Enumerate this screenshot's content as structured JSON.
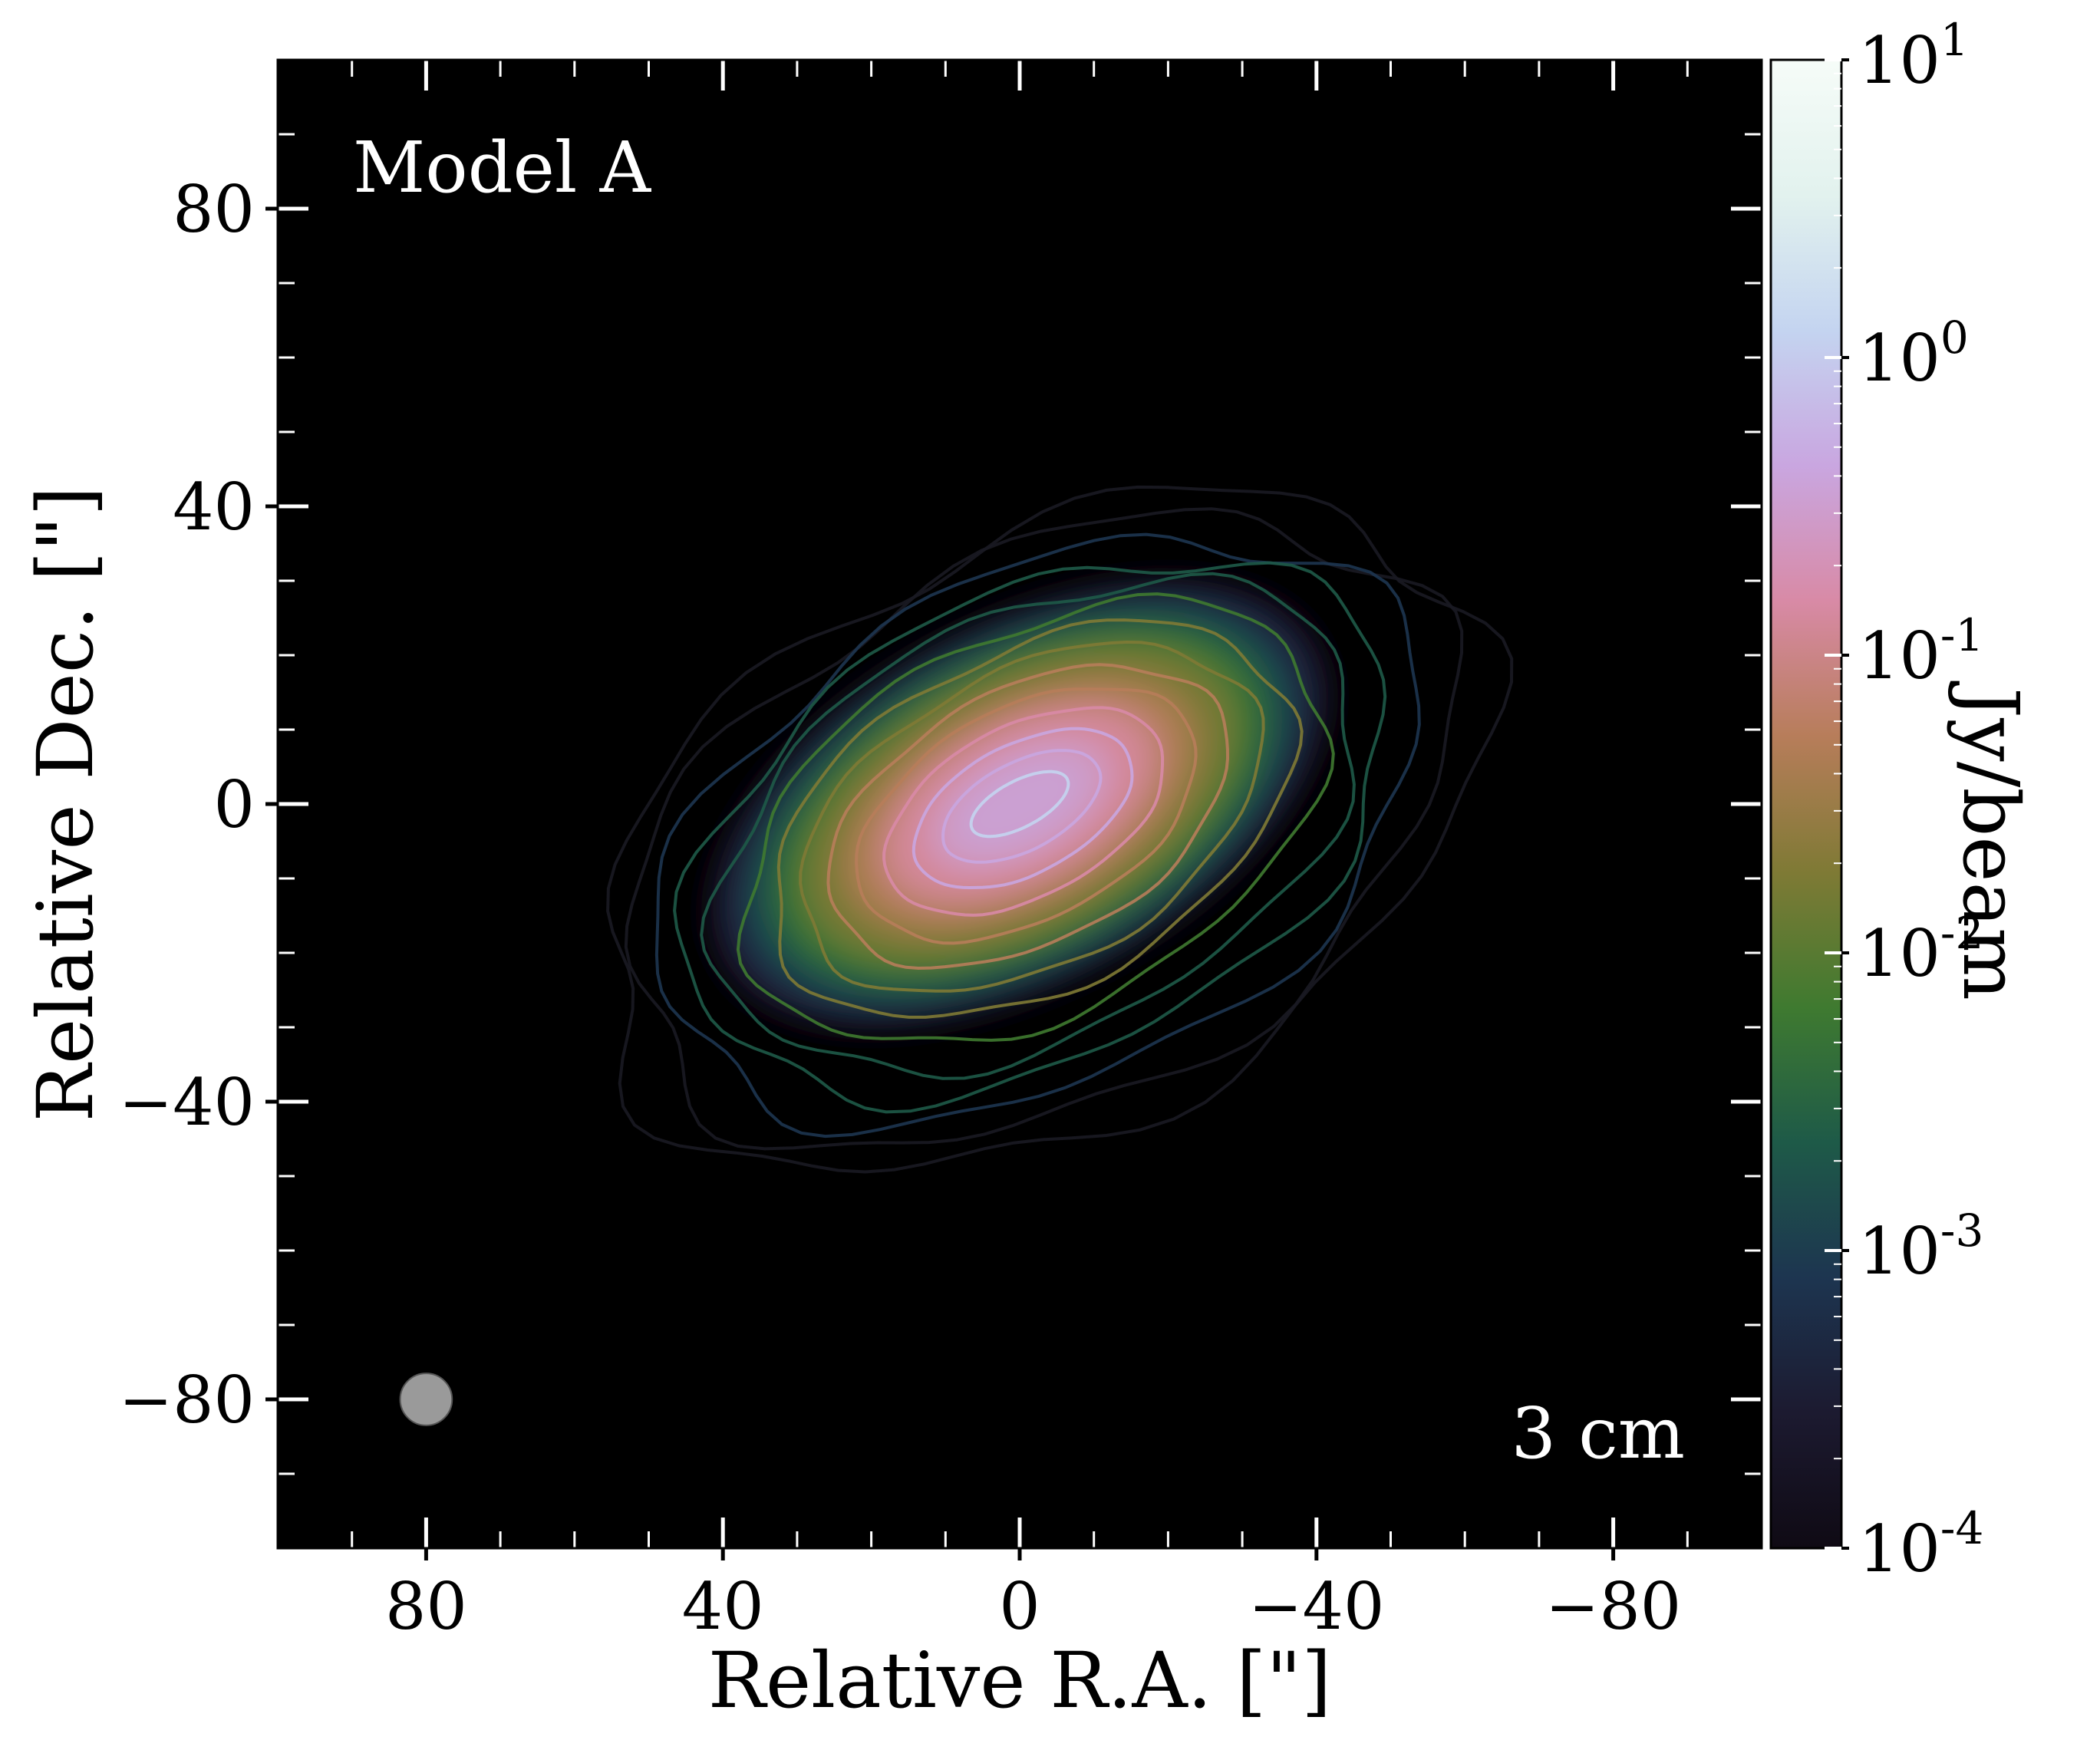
{
  "chart_data": {
    "type": "heatmap",
    "title": "",
    "panel_label": "Model A",
    "band_label": "3 cm",
    "xlabel": "Relative R.A. [\"]",
    "ylabel": "Relative Dec. [\"]",
    "xlim": [
      100,
      -100
    ],
    "ylim": [
      -100,
      100
    ],
    "x_ticks": [
      {
        "value": 80,
        "label": "80"
      },
      {
        "value": 40,
        "label": "40"
      },
      {
        "value": 0,
        "label": "0"
      },
      {
        "value": -40,
        "label": "−40"
      },
      {
        "value": -80,
        "label": "−80"
      }
    ],
    "y_ticks": [
      {
        "value": 80,
        "label": "80"
      },
      {
        "value": 40,
        "label": "40"
      },
      {
        "value": 0,
        "label": "0"
      },
      {
        "value": -40,
        "label": "−40"
      },
      {
        "value": -80,
        "label": "−80"
      }
    ],
    "colorbar": {
      "label": "Jy/beam",
      "scale": "log",
      "range": [
        0.0001,
        10
      ],
      "ticks": [
        {
          "value": 10,
          "base": "10",
          "exp": "1"
        },
        {
          "value": 1,
          "base": "10",
          "exp": "0"
        },
        {
          "value": 0.1,
          "base": "10",
          "exp": "-1"
        },
        {
          "value": 0.01,
          "base": "10",
          "exp": "-2"
        },
        {
          "value": 0.001,
          "base": "10",
          "exp": "-3"
        },
        {
          "value": 0.0001,
          "base": "10",
          "exp": "-4"
        }
      ],
      "colormap": [
        "#0f0a14",
        "#1c1a30",
        "#1d3550",
        "#1e5a48",
        "#3f7a30",
        "#7f7a35",
        "#b77d5a",
        "#d88aa6",
        "#c9a6e0",
        "#c4d4f0",
        "#e2f2ee",
        "#f6fcf8"
      ]
    },
    "emission_model": {
      "center": [
        0,
        0
      ],
      "position_angle_deg": -62,
      "major_sigma_arcsec": 22,
      "minor_sigma_arcsec": 11,
      "peak_jy_per_beam": 0.6
    },
    "beam": {
      "x": 80,
      "y": -80,
      "diameter_arcsec": 7,
      "color": "#9a9a9a"
    },
    "grid": false,
    "background": "#000000"
  }
}
